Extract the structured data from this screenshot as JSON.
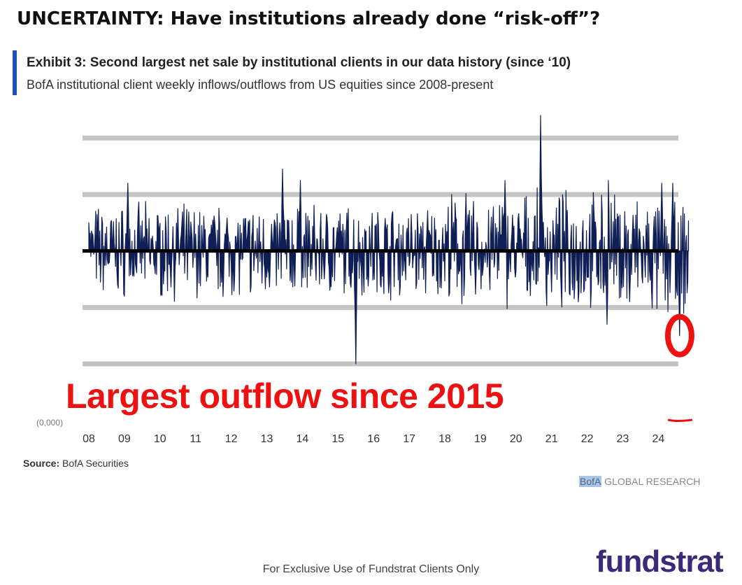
{
  "slide": {
    "title": "UNCERTAINTY: Have institutions already done “risk-off”?",
    "footer": "For Exclusive Use of Fundstrat Clients Only",
    "logo": "fundstrat"
  },
  "exhibit": {
    "title": "Exhibit 3: Second largest net sale by institutional clients in our data history (since ‘10)",
    "subtitle": "BofA institutional client weekly inflows/outflows from US equities since 2008-present",
    "source_label": "Source:",
    "source_value": "BofA Securities",
    "brand_highlight": "BofA",
    "brand_rest": "GLOBAL RESEARCH",
    "truncated_axis_label": "(0,000)"
  },
  "annotation": {
    "text": "Largest outflow since 2015",
    "color": "#ee1111"
  },
  "colors": {
    "series": "#0f1f55",
    "zero_line": "#000000",
    "gridline": "#c4c4c4",
    "highlight_circle": "#ee1111"
  },
  "chart_data": {
    "type": "area",
    "series_description": "weekly net flows",
    "x_ticks": [
      "08",
      "09",
      "10",
      "11",
      "12",
      "13",
      "14",
      "15",
      "16",
      "17",
      "18",
      "19",
      "20",
      "21",
      "22",
      "23",
      "24"
    ],
    "xlim": [
      2008.0,
      2024.85
    ],
    "ylim": [
      -2.0,
      2.4
    ],
    "gridlines": [
      -2.0,
      -1.0,
      1.0,
      2.0
    ],
    "grid": true,
    "highlight": {
      "x": 2024.6,
      "y": -1.5,
      "label": "Largest outflow since 2015"
    },
    "key_points": [
      {
        "x": 2008.0,
        "y": 0.5
      },
      {
        "x": 2009.1,
        "y": 1.2
      },
      {
        "x": 2013.45,
        "y": 1.45
      },
      {
        "x": 2013.95,
        "y": 1.25
      },
      {
        "x": 2015.5,
        "y": -2.0
      },
      {
        "x": 2019.7,
        "y": 1.25
      },
      {
        "x": 2020.7,
        "y": 2.4
      },
      {
        "x": 2022.6,
        "y": 1.25
      },
      {
        "x": 2022.55,
        "y": -1.3
      },
      {
        "x": 2023.2,
        "y": -0.9
      },
      {
        "x": 2024.1,
        "y": 1.2
      },
      {
        "x": 2024.4,
        "y": 1.2
      },
      {
        "x": 2024.6,
        "y": -1.5
      }
    ]
  }
}
